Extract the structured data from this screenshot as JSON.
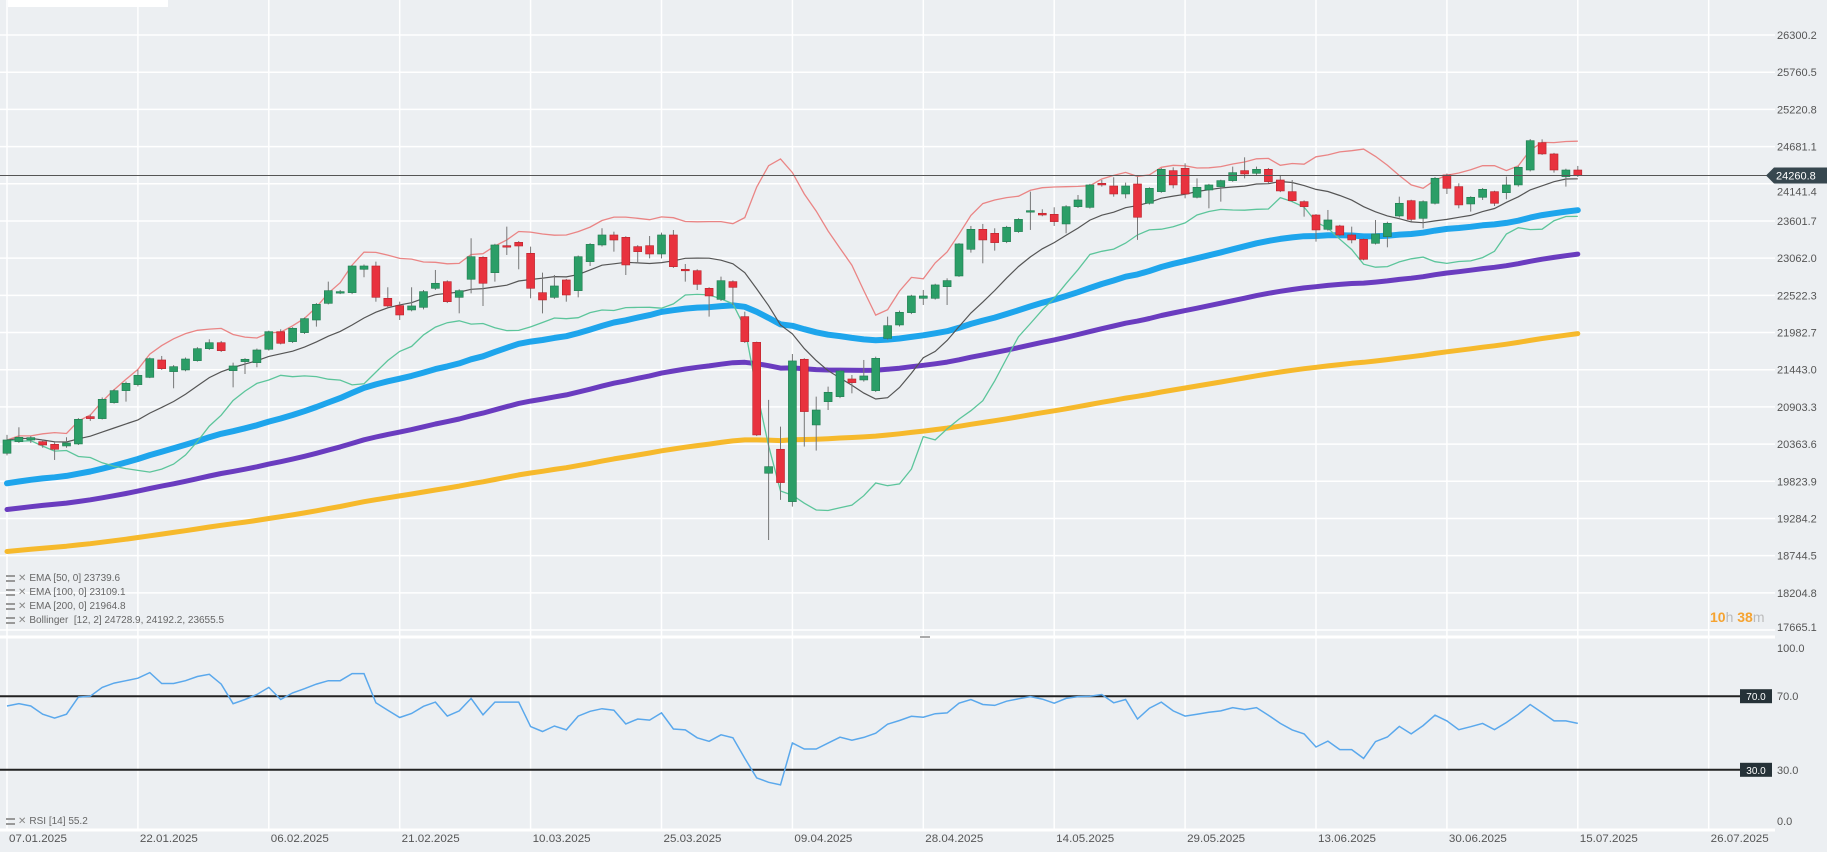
{
  "chart_data": [
    {
      "type": "candlestick",
      "price_axis_ticks": [
        "26300.2",
        "25760.5",
        "25220.8",
        "24681.1",
        "24141.4",
        "23601.7",
        "23062.0",
        "22522.3",
        "21982.7",
        "21443.0",
        "20903.3",
        "20363.6",
        "19823.9",
        "19284.2",
        "18744.5",
        "18204.8",
        "17665.1"
      ],
      "ylim": [
        17665.1,
        26300.2
      ],
      "x_tick_labels": [
        "07.01.2025",
        "22.01.2025",
        "06.02.2025",
        "21.02.2025",
        "10.03.2025",
        "25.03.2025",
        "09.04.2025",
        "28.04.2025",
        "14.05.2025",
        "29.05.2025",
        "13.06.2025",
        "30.06.2025",
        "15.07.2025",
        "26.07.2025"
      ],
      "grid": true,
      "current_price": "24260.8",
      "candles_ohlc": [
        [
          20230,
          20496,
          20200,
          20423
        ],
        [
          20399,
          20607,
          20380,
          20462
        ],
        [
          20423,
          20480,
          20380,
          20457
        ],
        [
          20399,
          20430,
          20310,
          20350
        ],
        [
          20360,
          20390,
          20133,
          20288
        ],
        [
          20336,
          20462,
          20310,
          20380
        ],
        [
          20365,
          20740,
          20350,
          20723
        ],
        [
          20762,
          20790,
          20700,
          20733
        ],
        [
          20733,
          21040,
          20720,
          21013
        ],
        [
          20965,
          21160,
          20950,
          21139
        ],
        [
          21139,
          21270,
          20979,
          21245
        ],
        [
          21226,
          21439,
          21200,
          21361
        ],
        [
          21332,
          21620,
          21320,
          21603
        ],
        [
          21584,
          21642,
          21440,
          21458
        ],
        [
          21415,
          21510,
          21173,
          21487
        ],
        [
          21439,
          21620,
          21420,
          21598
        ],
        [
          21574,
          21770,
          21560,
          21748
        ],
        [
          21748,
          21884,
          21730,
          21835
        ],
        [
          21835,
          21860,
          21700,
          21719
        ],
        [
          21429,
          21545,
          21187,
          21497
        ],
        [
          21560,
          21610,
          21381,
          21594
        ],
        [
          21545,
          21750,
          21478,
          21729
        ],
        [
          21739,
          22010,
          21720,
          21995
        ],
        [
          21995,
          22029,
          21810,
          21826
        ],
        [
          21850,
          22060,
          21830,
          22044
        ],
        [
          21981,
          22200,
          21960,
          22184
        ],
        [
          22164,
          22410,
          22068,
          22392
        ],
        [
          22406,
          22721,
          22390,
          22590
        ],
        [
          22561,
          22600,
          22540,
          22576
        ],
        [
          22561,
          22960,
          22540,
          22948
        ],
        [
          22900,
          22970,
          22784,
          22948
        ],
        [
          22948,
          23011,
          22430,
          22493
        ],
        [
          22479,
          22639,
          22350,
          22368
        ],
        [
          22373,
          22430,
          22164,
          22237
        ],
        [
          22310,
          22639,
          22290,
          22368
        ],
        [
          22348,
          22600,
          22319,
          22576
        ],
        [
          22624,
          22890,
          22600,
          22697
        ],
        [
          22721,
          22740,
          22410,
          22430
        ],
        [
          22493,
          22610,
          22261,
          22590
        ],
        [
          22755,
          23350,
          22551,
          23083
        ],
        [
          23074,
          23090,
          22368,
          22697
        ],
        [
          22851,
          23270,
          22721,
          23253
        ],
        [
          23243,
          23519,
          23108,
          23229
        ],
        [
          23291,
          23310,
          22900,
          23238
        ],
        [
          23132,
          23229,
          22479,
          22624
        ],
        [
          22561,
          22851,
          22261,
          22455
        ],
        [
          22493,
          22817,
          22470,
          22658
        ],
        [
          22745,
          22760,
          22430,
          22527
        ],
        [
          22590,
          23100,
          22493,
          23083
        ],
        [
          23011,
          23280,
          22948,
          23262
        ],
        [
          23253,
          23495,
          23230,
          23398
        ],
        [
          23398,
          23446,
          23156,
          23325
        ],
        [
          23364,
          23380,
          22817,
          22963
        ],
        [
          23229,
          23250,
          22987,
          23156
        ],
        [
          23243,
          23383,
          23059,
          23122
        ],
        [
          23122,
          23432,
          23059,
          23398
        ],
        [
          23398,
          23470,
          22920,
          22938
        ],
        [
          22900,
          22977,
          22721,
          22890
        ],
        [
          22880,
          22900,
          22600,
          22682
        ],
        [
          22624,
          22640,
          22213,
          22513
        ],
        [
          22464,
          22793,
          22440,
          22735
        ],
        [
          22721,
          22740,
          22382,
          22638
        ],
        [
          22213,
          22285,
          21830,
          21850
        ],
        [
          21840,
          21850,
          20480,
          20496
        ],
        [
          19940,
          21004,
          18972,
          20036
        ],
        [
          20288,
          20617,
          19553,
          19804
        ],
        [
          19528,
          21671,
          19456,
          21570
        ],
        [
          21594,
          21610,
          20327,
          20835
        ],
        [
          20641,
          21052,
          20269,
          20858
        ],
        [
          20979,
          21197,
          20858,
          21115
        ],
        [
          21052,
          21440,
          21030,
          21424
        ],
        [
          21308,
          21366,
          21100,
          21255
        ],
        [
          21294,
          21584,
          21270,
          21352
        ],
        [
          21139,
          21632,
          21120,
          21608
        ],
        [
          21898,
          22213,
          21880,
          22082
        ],
        [
          22092,
          22300,
          22070,
          22276
        ],
        [
          22271,
          22530,
          22250,
          22513
        ],
        [
          22479,
          22600,
          22382,
          22513
        ],
        [
          22479,
          22690,
          22460,
          22673
        ],
        [
          22648,
          22769,
          22382,
          22736
        ],
        [
          22803,
          23280,
          22790,
          23268
        ],
        [
          23190,
          23529,
          23142,
          23480
        ],
        [
          23480,
          23558,
          22987,
          23326
        ],
        [
          23422,
          23495,
          23171,
          23287
        ],
        [
          23301,
          23530,
          23280,
          23510
        ],
        [
          23447,
          23640,
          23430,
          23625
        ],
        [
          23745,
          24027,
          23471,
          23751
        ],
        [
          23713,
          23771,
          23670,
          23688
        ],
        [
          23698,
          23800,
          23529,
          23592
        ],
        [
          23558,
          23830,
          23422,
          23809
        ],
        [
          23809,
          23979,
          23790,
          23906
        ],
        [
          23799,
          24140,
          23780,
          24124
        ],
        [
          24148,
          24196,
          24100,
          24124
        ],
        [
          24109,
          24235,
          23954,
          23993
        ],
        [
          23993,
          24158,
          23930,
          24109
        ],
        [
          24138,
          24245,
          23326,
          23655
        ],
        [
          23858,
          24090,
          23840,
          24075
        ],
        [
          24027,
          24370,
          24010,
          24351
        ],
        [
          24332,
          24380,
          24075,
          24124
        ],
        [
          24366,
          24438,
          23930,
          23993
        ],
        [
          23945,
          24220,
          23930,
          24090
        ],
        [
          24051,
          24140,
          23785,
          24124
        ],
        [
          24100,
          24200,
          23882,
          24187
        ],
        [
          24187,
          24390,
          24170,
          24303
        ],
        [
          24332,
          24525,
          24220,
          24283
        ],
        [
          24293,
          24390,
          24270,
          24351
        ],
        [
          24351,
          24370,
          24150,
          24172
        ],
        [
          24196,
          24269,
          24020,
          24037
        ],
        [
          24027,
          24196,
          23880,
          23896
        ],
        [
          23882,
          23900,
          23664,
          23809
        ],
        [
          23688,
          23700,
          23301,
          23471
        ],
        [
          23480,
          23761,
          23460,
          23616
        ],
        [
          23529,
          23545,
          23380,
          23398
        ],
        [
          23398,
          23519,
          23277,
          23326
        ],
        [
          23335,
          23350,
          23030,
          23045
        ],
        [
          23277,
          23616,
          23260,
          23413
        ],
        [
          23374,
          23590,
          23219,
          23567
        ],
        [
          23674,
          23954,
          23650,
          23858
        ],
        [
          23896,
          23910,
          23592,
          23625
        ],
        [
          23640,
          23900,
          23495,
          23882
        ],
        [
          23858,
          24240,
          23840,
          24221
        ],
        [
          24269,
          24290,
          23993,
          24075
        ],
        [
          24100,
          24148,
          23785,
          23834
        ],
        [
          23848,
          23960,
          23737,
          23945
        ],
        [
          23945,
          24080,
          23906,
          24061
        ],
        [
          24027,
          24040,
          23819,
          23858
        ],
        [
          24012,
          24245,
          23916,
          24124
        ],
        [
          24124,
          24400,
          24100,
          24380
        ],
        [
          24341,
          24790,
          24320,
          24767
        ],
        [
          24738,
          24786,
          24560,
          24574
        ],
        [
          24574,
          24590,
          24303,
          24341
        ],
        [
          24245,
          24360,
          24100,
          24341
        ],
        [
          24341,
          24400,
          24240,
          24260.8
        ]
      ],
      "indicators": [
        {
          "label": "EMA",
          "params": "[50, 0]",
          "value": "23739.6",
          "start_value": 19794,
          "period": 50,
          "color": "#1ea5ec"
        },
        {
          "label": "EMA",
          "params": "[100, 0]",
          "value": "23109.1",
          "start_value": 19414,
          "period": 100,
          "color": "#6a3cbf"
        },
        {
          "label": "EMA",
          "params": "[200, 0]",
          "value": "21964.8",
          "start_value": 18804,
          "period": 200,
          "color": "#f6b92c"
        }
      ],
      "bollinger": {
        "label": "Bollinger",
        "params": "[12, 2]",
        "values": "24728.9,  24192.2,  23655.5",
        "period": 12,
        "mult": 2,
        "upper_color": "#ea8585",
        "middle_color": "#555555",
        "lower_color": "#5cc59b"
      },
      "colors": {
        "up": "#2b9e67",
        "down": "#e8323e"
      },
      "timer": {
        "hours": "10",
        "h": "h",
        "minutes": "38",
        "m": "m"
      }
    },
    {
      "type": "line",
      "indicator": "RSI",
      "params": "[14]",
      "value": "55.2",
      "ylim": [
        0,
        100
      ],
      "axis_ticks": [
        "100.0",
        "70.0",
        "30.0",
        "0.0"
      ],
      "levels": [
        "70.0",
        "30.0"
      ],
      "color": "#5aa8ec",
      "values": [
        64.7,
        65.9,
        64.7,
        60.2,
        58.1,
        60.2,
        69.5,
        70,
        74.8,
        77.1,
        78.4,
        79.8,
        82.8,
        76.9,
        76.9,
        78.4,
        80.7,
        81.9,
        76.6,
        65.9,
        68.2,
        70.9,
        74.8,
        68.2,
        71.8,
        74.1,
        76.6,
        78.4,
        78.4,
        82.3,
        82.3,
        66.4,
        62.4,
        58.4,
        60.6,
        64.5,
        66.8,
        59.2,
        62,
        68.8,
        59.9,
        66.8,
        66.8,
        66.8,
        53.5,
        50.8,
        53.8,
        51.7,
        59.2,
        61.8,
        63.2,
        62.4,
        54.9,
        57.6,
        57,
        60.9,
        52.2,
        51.7,
        47.4,
        45.5,
        49,
        47.4,
        36.2,
        25.6,
        23.2,
        21.8,
        44.6,
        41.3,
        41.3,
        44.5,
        47.7,
        46.1,
        47.6,
        49.9,
        54.8,
        56.8,
        59.1,
        58.6,
        60.5,
        60.9,
        66.2,
        68.2,
        65.5,
        65,
        67.3,
        68.6,
        69.8,
        68.4,
        66.2,
        68.8,
        69.8,
        70,
        70.9,
        66.4,
        68.2,
        57.6,
        63.5,
        66.8,
        62,
        59.2,
        60.2,
        61.3,
        62,
        63.8,
        62.7,
        63.8,
        59.7,
        55.2,
        51.7,
        49.5,
        42.4,
        45.6,
        41,
        41,
        36.2,
        45.3,
        47.8,
        53.6,
        49.5,
        54,
        59.7,
        56.6,
        51.8,
        53.4,
        55.2,
        51.8,
        55.7,
        60.2,
        65.5,
        61.1,
        56.6,
        56.6,
        55.2
      ]
    }
  ]
}
